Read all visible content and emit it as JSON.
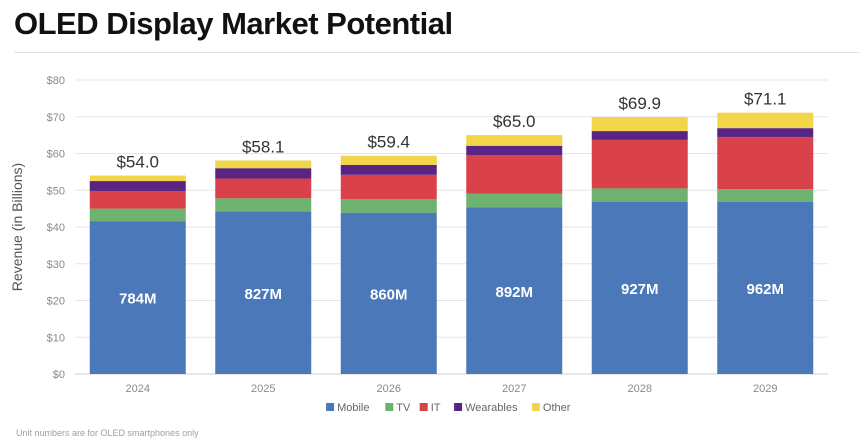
{
  "title": "OLED Display Market Potential",
  "footnote": "Unit numbers are for OLED smartphones only",
  "chart_data": {
    "type": "bar",
    "stacked": true,
    "categories": [
      "2024",
      "2025",
      "2026",
      "2027",
      "2028",
      "2029"
    ],
    "series": [
      {
        "name": "Mobile",
        "color": "#4a78b8",
        "values": [
          41.5,
          44.2,
          43.9,
          45.3,
          46.8,
          46.9
        ]
      },
      {
        "name": "TV",
        "color": "#6db36f",
        "values": [
          3.5,
          3.6,
          3.7,
          3.8,
          3.7,
          3.4
        ]
      },
      {
        "name": "IT",
        "color": "#d9424a",
        "values": [
          4.8,
          5.4,
          6.6,
          10.4,
          13.2,
          14.2
        ]
      },
      {
        "name": "Wearables",
        "color": "#5a2484",
        "values": [
          2.7,
          2.8,
          2.7,
          2.6,
          2.4,
          2.4
        ]
      },
      {
        "name": "Other",
        "color": "#f2d548",
        "values": [
          1.5,
          2.1,
          2.5,
          2.9,
          3.8,
          4.2
        ]
      }
    ],
    "totals": [
      "$54.0",
      "$58.1",
      "$59.4",
      "$65.0",
      "$69.9",
      "$71.1"
    ],
    "unit_labels": [
      "784M",
      "827M",
      "860M",
      "892M",
      "927M",
      "962M"
    ],
    "ylabel": "Revenue (in Billions)",
    "xlabel": "",
    "yticks": [
      "$0",
      "$10",
      "$20",
      "$30",
      "$40",
      "$50",
      "$60",
      "$70",
      "$80"
    ],
    "ylim": [
      0,
      80
    ],
    "grid": true,
    "legend_position": "bottom"
  }
}
